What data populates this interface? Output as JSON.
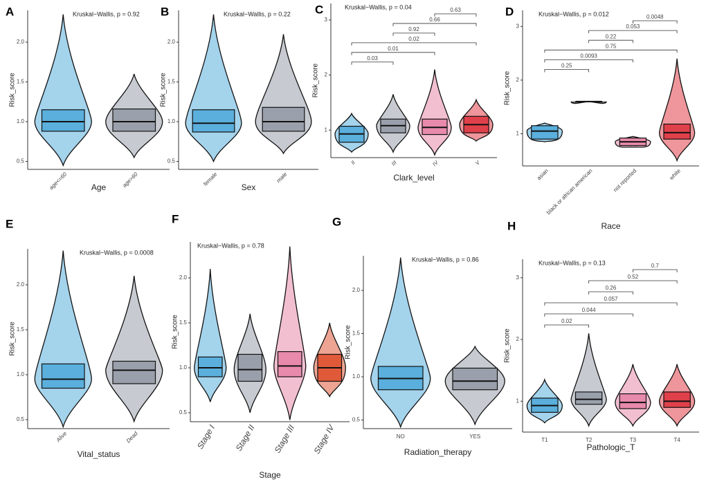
{
  "chart_data": [
    {
      "type": "violin",
      "label": "A",
      "title": "Kruskal−Wallis, p = 0.92",
      "xlabel": "Age",
      "ylabel": "Risk_score",
      "categories": [
        "age<=60",
        "age>60"
      ],
      "colors": [
        "#5aafdc",
        "#9aa0ab"
      ],
      "ylim": [
        0.4,
        2.4
      ],
      "yticks": [
        0.5,
        {
          "value": 1,
          "label": "1.0"
        },
        1.5,
        {
          "value": 2,
          "label": "2.0"
        }
      ],
      "groups": [
        {
          "min": 0.45,
          "q1": 0.88,
          "median": 1.0,
          "q3": 1.15,
          "max": 2.35
        },
        {
          "min": 0.55,
          "q1": 0.88,
          "median": 1.0,
          "q3": 1.16,
          "max": 1.6
        }
      ]
    },
    {
      "type": "violin",
      "label": "B",
      "title": "Kruskal−Wallis, p = 0.22",
      "xlabel": "Sex",
      "ylabel": "Risk_score",
      "categories": [
        "female",
        "male"
      ],
      "colors": [
        "#5aafdc",
        "#9aa0ab"
      ],
      "ylim": [
        0.4,
        2.4
      ],
      "yticks": [
        0.5,
        {
          "value": 1,
          "label": "1.0"
        },
        1.5,
        {
          "value": 2,
          "label": "2.0"
        }
      ],
      "groups": [
        {
          "min": 0.5,
          "q1": 0.87,
          "median": 0.98,
          "q3": 1.15,
          "max": 2.35
        },
        {
          "min": 0.6,
          "q1": 0.88,
          "median": 1.0,
          "q3": 1.18,
          "max": 2.1
        }
      ]
    },
    {
      "type": "violin",
      "label": "C",
      "title": "Kruskal−Wallis, p = 0.04",
      "xlabel": "Clark_level",
      "ylabel": "Risk_score",
      "categories": [
        "II",
        "III",
        "IV",
        "V"
      ],
      "colors": [
        "#5aafdc",
        "#9aa0ab",
        "#e88aab",
        "#e0404a"
      ],
      "ylim": [
        0.5,
        3.3
      ],
      "yticks": [
        1,
        2,
        3
      ],
      "groups": [
        {
          "min": 0.6,
          "q1": 0.78,
          "median": 0.93,
          "q3": 1.07,
          "max": 1.3
        },
        {
          "min": 0.6,
          "q1": 0.95,
          "median": 1.08,
          "q3": 1.2,
          "max": 1.65
        },
        {
          "min": 0.55,
          "q1": 0.92,
          "median": 1.05,
          "q3": 1.2,
          "max": 2.1
        },
        {
          "min": 0.8,
          "q1": 0.95,
          "median": 1.1,
          "q3": 1.25,
          "max": 1.55
        }
      ],
      "comparisons": [
        {
          "from": 0,
          "to": 1,
          "label": "0.03"
        },
        {
          "from": 0,
          "to": 2,
          "label": "0.01"
        },
        {
          "from": 0,
          "to": 3,
          "label": "0.02"
        },
        {
          "from": 1,
          "to": 2,
          "label": "0.92"
        },
        {
          "from": 1,
          "to": 3,
          "label": "0.66"
        },
        {
          "from": 2,
          "to": 3,
          "label": "0.63"
        }
      ]
    },
    {
      "type": "violin",
      "label": "D",
      "title": "Kruskal−Wallis, p = 0.012",
      "xlabel": "Race",
      "ylabel": "Risk_score",
      "categories": [
        "asian",
        "black or african american",
        "not reported",
        "white"
      ],
      "colors": [
        "#5aafdc",
        "#9aa0ab",
        "#e88aab",
        "#e0404a"
      ],
      "ylim": [
        0.4,
        3.3
      ],
      "yticks": [
        1,
        2,
        3
      ],
      "groups": [
        {
          "min": 0.85,
          "q1": 0.9,
          "median": 1.05,
          "q3": 1.15,
          "max": 1.2
        },
        {
          "min": 1.6,
          "q1": 1.6,
          "median": 1.6,
          "q3": 1.6,
          "max": 1.6
        },
        {
          "min": 0.75,
          "q1": 0.78,
          "median": 0.85,
          "q3": 0.92,
          "max": 0.95
        },
        {
          "min": 0.5,
          "q1": 0.9,
          "median": 1.02,
          "q3": 1.18,
          "max": 2.4
        }
      ],
      "comparisons": [
        {
          "from": 0,
          "to": 1,
          "label": "0.25"
        },
        {
          "from": 0,
          "to": 2,
          "label": "0.0093"
        },
        {
          "from": 0,
          "to": 3,
          "label": "0.75"
        },
        {
          "from": 1,
          "to": 2,
          "label": "0.22"
        },
        {
          "from": 1,
          "to": 3,
          "label": "0.053"
        },
        {
          "from": 2,
          "to": 3,
          "label": "0.0048"
        }
      ]
    },
    {
      "type": "violin",
      "label": "E",
      "title": "Kruskal−Wallis, p = 0.0008",
      "xlabel": "Vital_status",
      "ylabel": "Risk_score",
      "categories": [
        "Alive",
        "Dead"
      ],
      "colors": [
        "#5aafdc",
        "#9aa0ab"
      ],
      "ylim": [
        0.4,
        2.4
      ],
      "yticks": [
        0.5,
        {
          "value": 1,
          "label": "1.0"
        },
        1.5,
        {
          "value": 2,
          "label": "2.0"
        }
      ],
      "groups": [
        {
          "min": 0.42,
          "q1": 0.85,
          "median": 0.95,
          "q3": 1.12,
          "max": 2.38
        },
        {
          "min": 0.48,
          "q1": 0.9,
          "median": 1.05,
          "q3": 1.15,
          "max": 2.1
        }
      ]
    },
    {
      "type": "violin",
      "label": "F",
      "title": "Kruskal−Wallis, p = 0.78",
      "xlabel": "Stage",
      "ylabel": "Risk_score",
      "categories": [
        "Stage I",
        "Stage II",
        "Stage III",
        "Stage IV"
      ],
      "colors": [
        "#5aafdc",
        "#9aa0ab",
        "#e88aab",
        "#e05a3a"
      ],
      "ylim": [
        0.4,
        2.4
      ],
      "yticks": [
        0.5,
        {
          "value": 1,
          "label": "1.0"
        },
        1.5,
        {
          "value": 2,
          "label": "2.0"
        }
      ],
      "groups": [
        {
          "min": 0.62,
          "q1": 0.9,
          "median": 1.0,
          "q3": 1.12,
          "max": 2.1
        },
        {
          "min": 0.5,
          "q1": 0.85,
          "median": 0.98,
          "q3": 1.15,
          "max": 1.6
        },
        {
          "min": 0.42,
          "q1": 0.9,
          "median": 1.02,
          "q3": 1.18,
          "max": 2.35
        },
        {
          "min": 0.68,
          "q1": 0.85,
          "median": 1.0,
          "q3": 1.15,
          "max": 1.5
        }
      ]
    },
    {
      "type": "violin",
      "label": "G",
      "title": "Kruskal−Wallis, p = 0.86",
      "xlabel": "Radiation_therapy",
      "ylabel": "Risk_score",
      "categories": [
        "NO",
        "YES"
      ],
      "colors": [
        "#5aafdc",
        "#9aa0ab"
      ],
      "ylim": [
        0.4,
        2.4
      ],
      "yticks": [
        0.5,
        {
          "value": 1,
          "label": "1.0"
        },
        1.5,
        {
          "value": 2,
          "label": "2.0"
        }
      ],
      "groups": [
        {
          "min": 0.42,
          "q1": 0.85,
          "median": 0.98,
          "q3": 1.12,
          "max": 2.38
        },
        {
          "min": 0.45,
          "q1": 0.85,
          "median": 0.95,
          "q3": 1.1,
          "max": 1.35
        }
      ]
    },
    {
      "type": "violin",
      "label": "H",
      "title": "Kruskal−Wallis, p = 0.13",
      "xlabel": "Pathologic_T",
      "ylabel": "Risk_score",
      "categories": [
        "T1",
        "T2",
        "T3",
        "T4"
      ],
      "colors": [
        "#5aafdc",
        "#9aa0ab",
        "#e88aab",
        "#e0404a"
      ],
      "ylim": [
        0.5,
        3.3
      ],
      "yticks": [
        1,
        2,
        3
      ],
      "groups": [
        {
          "min": 0.65,
          "q1": 0.82,
          "median": 0.93,
          "q3": 1.05,
          "max": 1.35
        },
        {
          "min": 0.6,
          "q1": 0.95,
          "median": 1.03,
          "q3": 1.15,
          "max": 2.1
        },
        {
          "min": 0.6,
          "q1": 0.88,
          "median": 0.98,
          "q3": 1.12,
          "max": 1.6
        },
        {
          "min": 0.6,
          "q1": 0.9,
          "median": 1.0,
          "q3": 1.15,
          "max": 1.6
        }
      ],
      "comparisons": [
        {
          "from": 0,
          "to": 1,
          "label": "0.02"
        },
        {
          "from": 0,
          "to": 2,
          "label": "0.044"
        },
        {
          "from": 0,
          "to": 3,
          "label": "0.057"
        },
        {
          "from": 1,
          "to": 2,
          "label": "0.26"
        },
        {
          "from": 1,
          "to": 3,
          "label": "0.52"
        },
        {
          "from": 2,
          "to": 3,
          "label": "0.7"
        }
      ]
    }
  ]
}
